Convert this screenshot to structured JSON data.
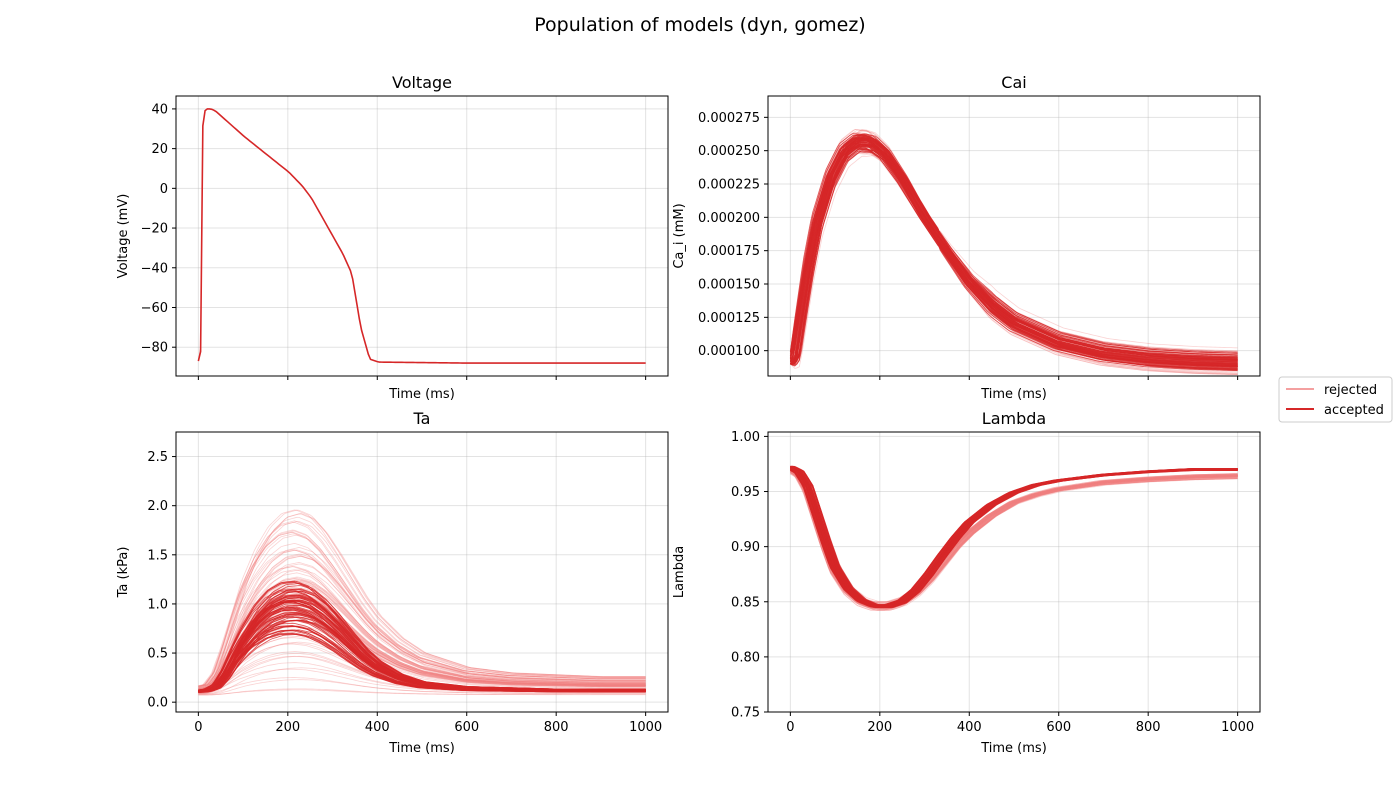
{
  "figure": {
    "title": "Population of models (dyn, gomez)"
  },
  "legend": {
    "placement": "center-right outside",
    "entries": [
      {
        "label": "rejected",
        "color": "#f08080"
      },
      {
        "label": "accepted",
        "color": "#d62728"
      }
    ]
  },
  "chart_data": [
    {
      "type": "line",
      "title": "Voltage",
      "xlabel": "Time (ms)",
      "ylabel": "Voltage (mV)",
      "xlim": [
        -50,
        1050
      ],
      "ylim": [
        -94.5,
        46.5
      ],
      "xticks": [
        0,
        200,
        400,
        600,
        800,
        1000
      ],
      "show_xtick_labels": false,
      "yticks": [
        -80,
        -60,
        -40,
        -20,
        0,
        20,
        40
      ],
      "ytick_labels": [
        "−80",
        "−60",
        "−40",
        "−20",
        "0",
        "20",
        "40"
      ],
      "grid": true,
      "series": [
        {
          "role": "rejected",
          "count": 1,
          "spread": 0,
          "x": [
            0,
            2,
            3,
            5,
            8,
            15,
            25,
            35,
            60,
            100,
            150,
            200,
            230,
            250,
            270,
            300,
            320,
            340,
            360,
            380,
            400,
            600,
            1000
          ],
          "y": [
            -87,
            -82,
            -30,
            20,
            38,
            40,
            40,
            39,
            34,
            26,
            17,
            8,
            1,
            -5,
            -13,
            -25,
            -33,
            -43,
            -70,
            -86,
            -87.5,
            -88,
            -88
          ]
        },
        {
          "role": "accepted",
          "count": 1,
          "spread": 0,
          "x": [
            0,
            2,
            3,
            5,
            8,
            15,
            25,
            35,
            60,
            100,
            150,
            200,
            230,
            250,
            270,
            300,
            320,
            340,
            360,
            380,
            400,
            600,
            1000
          ],
          "y": [
            -87,
            -82,
            -30,
            20,
            38,
            40,
            40,
            39,
            34,
            26,
            17,
            8,
            1,
            -5,
            -13,
            -25,
            -33,
            -43,
            -70,
            -86,
            -87.5,
            -88,
            -88
          ]
        }
      ]
    },
    {
      "type": "line",
      "title": "Cai",
      "xlabel": "Time (ms)",
      "ylabel": "Ca_i (mM)",
      "xlim": [
        -50,
        1050
      ],
      "ylim": [
        8.1e-05,
        0.000291
      ],
      "xticks": [
        0,
        200,
        400,
        600,
        800,
        1000
      ],
      "show_xtick_labels": false,
      "yticks": [
        0.0001,
        0.000125,
        0.00015,
        0.000175,
        0.0002,
        0.000225,
        0.00025,
        0.000275
      ],
      "ytick_labels": [
        "0.000100",
        "0.000125",
        "0.000150",
        "0.000175",
        "0.000200",
        "0.000225",
        "0.000250",
        "0.000275"
      ],
      "grid": true,
      "series": [
        {
          "role": "rejected",
          "count": 50,
          "spread": 1.2e-05,
          "pivot": 310,
          "x": [
            0,
            10,
            20,
            40,
            60,
            90,
            120,
            150,
            180,
            210,
            250,
            300,
            350,
            400,
            450,
            500,
            600,
            700,
            800,
            900,
            1000
          ],
          "y": [
            9e-05,
            9.5e-05,
            0.000118,
            0.00016,
            0.000195,
            0.000228,
            0.000248,
            0.000256,
            0.000255,
            0.000247,
            0.000228,
            0.0002,
            0.000175,
            0.000152,
            0.000135,
            0.000122,
            0.000107,
            9.9e-05,
            9.5e-05,
            9.3e-05,
            9.2e-05
          ]
        },
        {
          "role": "accepted",
          "count": 60,
          "spread": 7e-06,
          "pivot": 310,
          "x": [
            0,
            10,
            20,
            40,
            60,
            90,
            120,
            150,
            180,
            210,
            250,
            300,
            350,
            400,
            450,
            500,
            600,
            700,
            800,
            900,
            1000
          ],
          "y": [
            9e-05,
            9.5e-05,
            0.000118,
            0.00016,
            0.000195,
            0.000228,
            0.000248,
            0.000256,
            0.000255,
            0.000247,
            0.000228,
            0.0002,
            0.000175,
            0.000152,
            0.000135,
            0.000122,
            0.000107,
            9.9e-05,
            9.5e-05,
            9.3e-05,
            9.2e-05
          ]
        }
      ]
    },
    {
      "type": "line",
      "title": "Ta",
      "xlabel": "Time (ms)",
      "ylabel": "Ta (kPa)",
      "xlim": [
        -50,
        1050
      ],
      "ylim": [
        -0.1,
        2.75
      ],
      "xticks": [
        0,
        200,
        400,
        600,
        800,
        1000
      ],
      "show_xtick_labels": true,
      "xtick_labels": [
        "0",
        "200",
        "400",
        "600",
        "800",
        "1000"
      ],
      "yticks": [
        0,
        0.5,
        1,
        1.5,
        2,
        2.5
      ],
      "ytick_labels": [
        "0.0",
        "0.5",
        "1.0",
        "1.5",
        "2.0",
        "2.5"
      ],
      "grid": true,
      "series": [
        {
          "role": "rejected",
          "count": 90,
          "spread": 0.95,
          "baseline": 0.12,
          "x": [
            0,
            20,
            40,
            60,
            80,
            100,
            130,
            160,
            190,
            220,
            250,
            280,
            310,
            340,
            370,
            400,
            450,
            500,
            600,
            700,
            800,
            900,
            1000
          ],
          "y": [
            0.12,
            0.13,
            0.2,
            0.35,
            0.52,
            0.68,
            0.85,
            0.97,
            1.04,
            1.06,
            1.03,
            0.95,
            0.84,
            0.72,
            0.6,
            0.5,
            0.38,
            0.3,
            0.22,
            0.19,
            0.18,
            0.17,
            0.17
          ]
        },
        {
          "role": "accepted",
          "count": 70,
          "spread": 0.32,
          "baseline": 0.12,
          "x": [
            0,
            20,
            40,
            60,
            80,
            100,
            130,
            160,
            190,
            220,
            250,
            280,
            310,
            340,
            370,
            400,
            450,
            500,
            600,
            700,
            800,
            900,
            1000
          ],
          "y": [
            0.11,
            0.12,
            0.16,
            0.28,
            0.45,
            0.6,
            0.78,
            0.9,
            0.96,
            0.97,
            0.93,
            0.84,
            0.72,
            0.58,
            0.45,
            0.35,
            0.24,
            0.18,
            0.14,
            0.13,
            0.12,
            0.12,
            0.12
          ]
        }
      ]
    },
    {
      "type": "line",
      "title": "Lambda",
      "xlabel": "Time (ms)",
      "ylabel": "Lambda",
      "xlim": [
        -50,
        1050
      ],
      "ylim": [
        0.75,
        1.004
      ],
      "xticks": [
        0,
        200,
        400,
        600,
        800,
        1000
      ],
      "show_xtick_labels": true,
      "xtick_labels": [
        "0",
        "200",
        "400",
        "600",
        "800",
        "1000"
      ],
      "yticks": [
        0.75,
        0.8,
        0.85,
        0.9,
        0.95,
        1.0
      ],
      "ytick_labels": [
        "0.75",
        "0.80",
        "0.85",
        "0.90",
        "0.95",
        "1.00"
      ],
      "grid": true,
      "series": [
        {
          "role": "rejected",
          "count": 90,
          "spread": 0.055,
          "baseline": 0.97,
          "x": [
            0,
            20,
            40,
            60,
            80,
            100,
            130,
            160,
            190,
            220,
            250,
            280,
            310,
            340,
            370,
            400,
            450,
            500,
            550,
            600,
            700,
            800,
            900,
            1000
          ],
          "y": [
            0.97,
            0.965,
            0.95,
            0.925,
            0.9,
            0.878,
            0.86,
            0.85,
            0.846,
            0.846,
            0.85,
            0.858,
            0.87,
            0.885,
            0.9,
            0.912,
            0.928,
            0.94,
            0.947,
            0.952,
            0.958,
            0.961,
            0.963,
            0.964
          ]
        },
        {
          "role": "accepted",
          "count": 70,
          "spread": 0.02,
          "baseline": 0.97,
          "x": [
            0,
            20,
            40,
            60,
            80,
            100,
            130,
            160,
            190,
            220,
            250,
            280,
            310,
            340,
            370,
            400,
            450,
            500,
            550,
            600,
            700,
            800,
            900,
            1000
          ],
          "y": [
            0.972,
            0.968,
            0.955,
            0.93,
            0.905,
            0.882,
            0.862,
            0.851,
            0.846,
            0.846,
            0.85,
            0.86,
            0.875,
            0.892,
            0.908,
            0.922,
            0.938,
            0.949,
            0.956,
            0.96,
            0.965,
            0.968,
            0.97,
            0.97
          ]
        }
      ]
    }
  ]
}
